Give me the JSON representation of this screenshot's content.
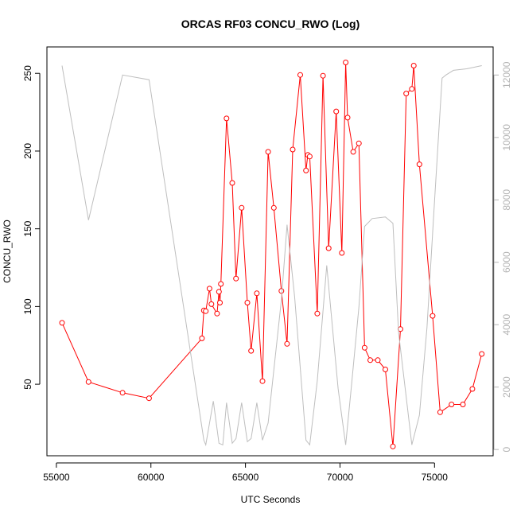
{
  "chart_data": {
    "type": "line",
    "title": "ORCAS RF03 CONCU_RWO (Log)",
    "xlabel": "UTC Seconds",
    "ylabel": "CONCU_RWO",
    "xlim": [
      54500,
      78100
    ],
    "ylim": [
      4,
      267
    ],
    "y2lim": [
      -200,
      12900
    ],
    "x_ticks": [
      55000,
      60000,
      65000,
      70000,
      75000
    ],
    "y_ticks": [
      50,
      100,
      150,
      200,
      250
    ],
    "y2_ticks": [
      0,
      2000,
      4000,
      6000,
      8000,
      10000,
      12000
    ],
    "grid": false,
    "series": [
      {
        "axis": "left",
        "color": "#ff0000",
        "marker": "circle",
        "points": [
          [
            55300,
            89.5
          ],
          [
            56700,
            51.5
          ],
          [
            58500,
            44.5
          ],
          [
            59900,
            41
          ],
          [
            62700,
            79.5
          ],
          [
            62800,
            97.5
          ],
          [
            62900,
            97
          ],
          [
            63100,
            111.5
          ],
          [
            63200,
            101.5
          ],
          [
            63500,
            95.5
          ],
          [
            63600,
            109.5
          ],
          [
            63650,
            102.5
          ],
          [
            63700,
            114.5
          ],
          [
            64000,
            221
          ],
          [
            64300,
            179.5
          ],
          [
            64500,
            118
          ],
          [
            64800,
            163.5
          ],
          [
            65100,
            102.5
          ],
          [
            65300,
            71.5
          ],
          [
            65600,
            108.5
          ],
          [
            65900,
            52
          ],
          [
            66200,
            199.5
          ],
          [
            66500,
            163.5
          ],
          [
            66900,
            110
          ],
          [
            67200,
            76
          ],
          [
            67500,
            201
          ],
          [
            67900,
            249
          ],
          [
            68200,
            187.5
          ],
          [
            68300,
            197.5
          ],
          [
            68400,
            196.5
          ],
          [
            68800,
            95.5
          ],
          [
            69100,
            248.5
          ],
          [
            69400,
            137.5
          ],
          [
            69800,
            225.5
          ],
          [
            70100,
            134.5
          ],
          [
            70300,
            257
          ],
          [
            70400,
            221.5
          ],
          [
            70700,
            199.5
          ],
          [
            71000,
            205
          ],
          [
            71300,
            73.5
          ],
          [
            71600,
            65.5
          ],
          [
            72000,
            65.5
          ],
          [
            72400,
            59.5
          ],
          [
            72800,
            10
          ],
          [
            73200,
            85.5
          ],
          [
            73500,
            237
          ],
          [
            73800,
            240
          ],
          [
            73900,
            255
          ],
          [
            74200,
            191.5
          ],
          [
            74900,
            94
          ],
          [
            75300,
            32
          ],
          [
            75900,
            37
          ],
          [
            76500,
            37
          ],
          [
            77000,
            47
          ],
          [
            77500,
            69.5
          ]
        ]
      },
      {
        "axis": "right",
        "color": "#bebebe",
        "marker": "none",
        "points": [
          [
            55300,
            12300
          ],
          [
            56700,
            7350
          ],
          [
            58500,
            12000
          ],
          [
            59900,
            11850
          ],
          [
            62800,
            300
          ],
          [
            62900,
            150
          ],
          [
            63300,
            1550
          ],
          [
            63600,
            200
          ],
          [
            63800,
            150
          ],
          [
            64000,
            1500
          ],
          [
            64300,
            200
          ],
          [
            64500,
            350
          ],
          [
            64800,
            1500
          ],
          [
            65100,
            250
          ],
          [
            65300,
            350
          ],
          [
            65600,
            1500
          ],
          [
            65900,
            300
          ],
          [
            66200,
            850
          ],
          [
            66900,
            4800
          ],
          [
            67200,
            7200
          ],
          [
            67600,
            4900
          ],
          [
            68200,
            300
          ],
          [
            68400,
            150
          ],
          [
            68800,
            2200
          ],
          [
            69300,
            5900
          ],
          [
            69900,
            1950
          ],
          [
            70100,
            1050
          ],
          [
            70300,
            150
          ],
          [
            70600,
            2000
          ],
          [
            71000,
            4550
          ],
          [
            71300,
            7150
          ],
          [
            71700,
            7400
          ],
          [
            72400,
            7450
          ],
          [
            72800,
            7250
          ],
          [
            73100,
            3750
          ],
          [
            73800,
            150
          ],
          [
            74200,
            1100
          ],
          [
            74600,
            3900
          ],
          [
            75000,
            7950
          ],
          [
            75400,
            11900
          ],
          [
            75600,
            12000
          ],
          [
            76000,
            12150
          ],
          [
            76700,
            12200
          ],
          [
            77500,
            12300
          ]
        ]
      }
    ]
  }
}
